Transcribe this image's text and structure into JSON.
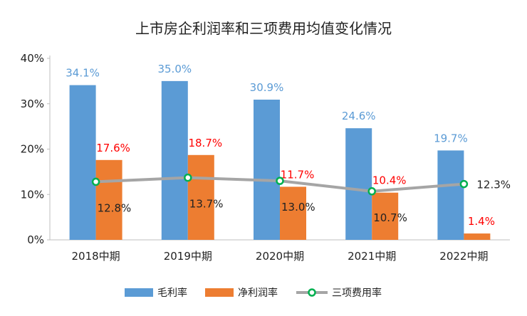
{
  "chart_data": {
    "type": "bar",
    "title": "上市房企利润率和三项费用均值变化情况",
    "categories": [
      "2018中期",
      "2019中期",
      "2020中期",
      "2021中期",
      "2022中期"
    ],
    "ylim": [
      0,
      40
    ],
    "yticks": [
      "0%",
      "10%",
      "20%",
      "30%",
      "40%"
    ],
    "grid": false,
    "legend_position": "bottom",
    "series": [
      {
        "name": "毛利率",
        "type": "bar",
        "color": "#5b9bd5",
        "label_color": "#5b9bd5",
        "values": [
          34.1,
          35.0,
          30.9,
          24.6,
          19.7
        ],
        "labels": [
          "34.1%",
          "35.0%",
          "30.9%",
          "24.6%",
          "19.7%"
        ]
      },
      {
        "name": "净利润率",
        "type": "bar",
        "color": "#ed7d31",
        "label_color": "#ff0000",
        "values": [
          17.6,
          18.7,
          11.7,
          10.4,
          1.4
        ],
        "labels": [
          "17.6%",
          "18.7%",
          "11.7%",
          "10.4%",
          "1.4%"
        ]
      },
      {
        "name": "三项费用率",
        "type": "line",
        "color": "#a5a5a5",
        "marker_color": "#00b050",
        "label_color": "#222222",
        "values": [
          12.8,
          13.7,
          13.0,
          10.7,
          12.3
        ],
        "labels": [
          "12.8%",
          "13.7%",
          "13.0%",
          "10.7%",
          "12.3%"
        ]
      }
    ]
  }
}
